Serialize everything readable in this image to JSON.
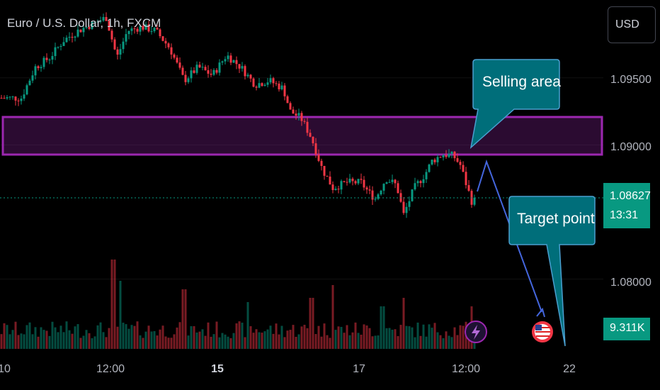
{
  "header": {
    "title": "Euro / U.S. Dollar, 1h, FXCM"
  },
  "toolbar": {
    "currency_label": "USD"
  },
  "price_axis": {
    "ticks": [
      "1.09500",
      "1.09000",
      "1.08000"
    ],
    "tick_values": [
      1.095,
      1.09,
      1.08
    ]
  },
  "time_axis": {
    "ticks": [
      {
        "label": "10",
        "bold": false
      },
      {
        "label": "12:00",
        "bold": false
      },
      {
        "label": "15",
        "bold": true
      },
      {
        "label": "17",
        "bold": false
      },
      {
        "label": "12:00",
        "bold": false
      },
      {
        "label": "22",
        "bold": false
      }
    ]
  },
  "current_price": {
    "value": "1.08627",
    "countdown": "13:31"
  },
  "volume": {
    "value": "9.311K"
  },
  "annotations": {
    "selling_label": "Selling area",
    "target_label": "Target point"
  },
  "colors": {
    "up": "#089981",
    "down": "#f23645",
    "zone": "#9c27b0",
    "callout": "#006e7a",
    "arrow": "#4466dd",
    "badge": "#089981"
  },
  "icons": [
    "lightning-icon",
    "us-flag-icon"
  ],
  "chart_data": {
    "type": "candlestick",
    "symbol": "EUR/USD",
    "interval": "1h",
    "source": "FXCM",
    "ylim": [
      1.0748,
      1.1008
    ],
    "selling_zone": [
      1.0894,
      1.0922
    ],
    "current_price": 1.08627,
    "price_path": [
      [
        0,
        1.0935
      ],
      [
        16,
        1.0935
      ],
      [
        30,
        1.0935
      ],
      [
        50,
        1.0958
      ],
      [
        70,
        1.0965
      ],
      [
        90,
        1.0978
      ],
      [
        110,
        1.0985
      ],
      [
        130,
        1.099
      ],
      [
        150,
        1.0995
      ],
      [
        165,
        1.0965
      ],
      [
        180,
        1.0985
      ],
      [
        200,
        1.0988
      ],
      [
        220,
        1.0985
      ],
      [
        240,
        1.0972
      ],
      [
        260,
        1.0948
      ],
      [
        280,
        1.0958
      ],
      [
        300,
        1.0952
      ],
      [
        320,
        1.0967
      ],
      [
        340,
        1.0958
      ],
      [
        360,
        1.0945
      ],
      [
        380,
        1.0948
      ],
      [
        400,
        1.0942
      ],
      [
        410,
        1.0925
      ],
      [
        425,
        1.092
      ],
      [
        440,
        1.0905
      ],
      [
        455,
        1.0882
      ],
      [
        470,
        1.0868
      ],
      [
        490,
        1.0872
      ],
      [
        510,
        1.0872
      ],
      [
        520,
        1.0865
      ],
      [
        530,
        1.086
      ],
      [
        545,
        1.0875
      ],
      [
        560,
        1.087
      ],
      [
        570,
        1.0848
      ],
      [
        585,
        1.0868
      ],
      [
        600,
        1.0878
      ],
      [
        610,
        1.0888
      ],
      [
        625,
        1.0893
      ],
      [
        640,
        1.0892
      ],
      [
        650,
        1.0885
      ],
      [
        660,
        1.0868
      ],
      [
        668,
        1.0855
      ],
      [
        672,
        1.0862
      ]
    ],
    "volume_peaks": [
      [
        160,
        0.42
      ],
      [
        170,
        0.32
      ],
      [
        260,
        0.28
      ],
      [
        350,
        0.22
      ],
      [
        440,
        0.24
      ],
      [
        470,
        0.3
      ],
      [
        540,
        0.2
      ],
      [
        570,
        0.24
      ],
      [
        665,
        0.2
      ]
    ]
  }
}
